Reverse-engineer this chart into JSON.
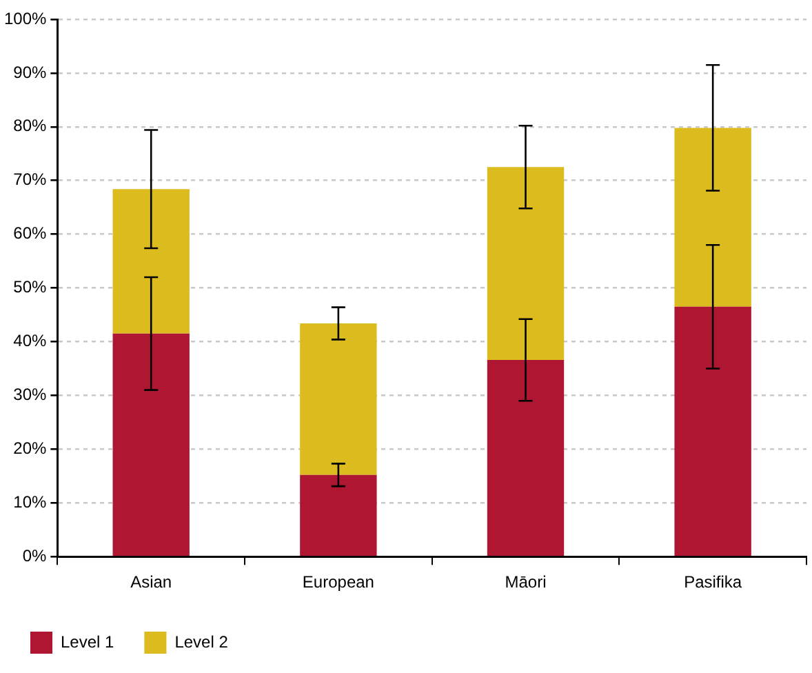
{
  "chart_data": {
    "type": "bar",
    "stacked": true,
    "categories": [
      "Asian",
      "European",
      "Māori",
      "Pasifika"
    ],
    "series": [
      {
        "name": "Level 1",
        "color": "#ae1632",
        "values": [
          41.5,
          15.2,
          36.6,
          46.5
        ],
        "errors": [
          10.5,
          2.1,
          7.6,
          11.5
        ]
      },
      {
        "name": "Level 2",
        "color": "#dcbb1e",
        "values": [
          26.9,
          28.2,
          35.9,
          33.3
        ],
        "errors": [
          11,
          3,
          7.7,
          11.7
        ]
      }
    ],
    "ylim": [
      0,
      100
    ],
    "yticks": [
      {
        "value": 0,
        "label": "0%"
      },
      {
        "value": 10,
        "label": "10%"
      },
      {
        "value": 20,
        "label": "20%"
      },
      {
        "value": 30,
        "label": "30%"
      },
      {
        "value": 40,
        "label": "40%"
      },
      {
        "value": 50,
        "label": "50%"
      },
      {
        "value": 60,
        "label": "60%"
      },
      {
        "value": 70,
        "label": "70%"
      },
      {
        "value": 80,
        "label": "80%"
      },
      {
        "value": 90,
        "label": "90%"
      },
      {
        "value": 100,
        "label": "100%"
      }
    ],
    "grid": "y",
    "legend": "bottom left",
    "line_style": "dashed"
  }
}
